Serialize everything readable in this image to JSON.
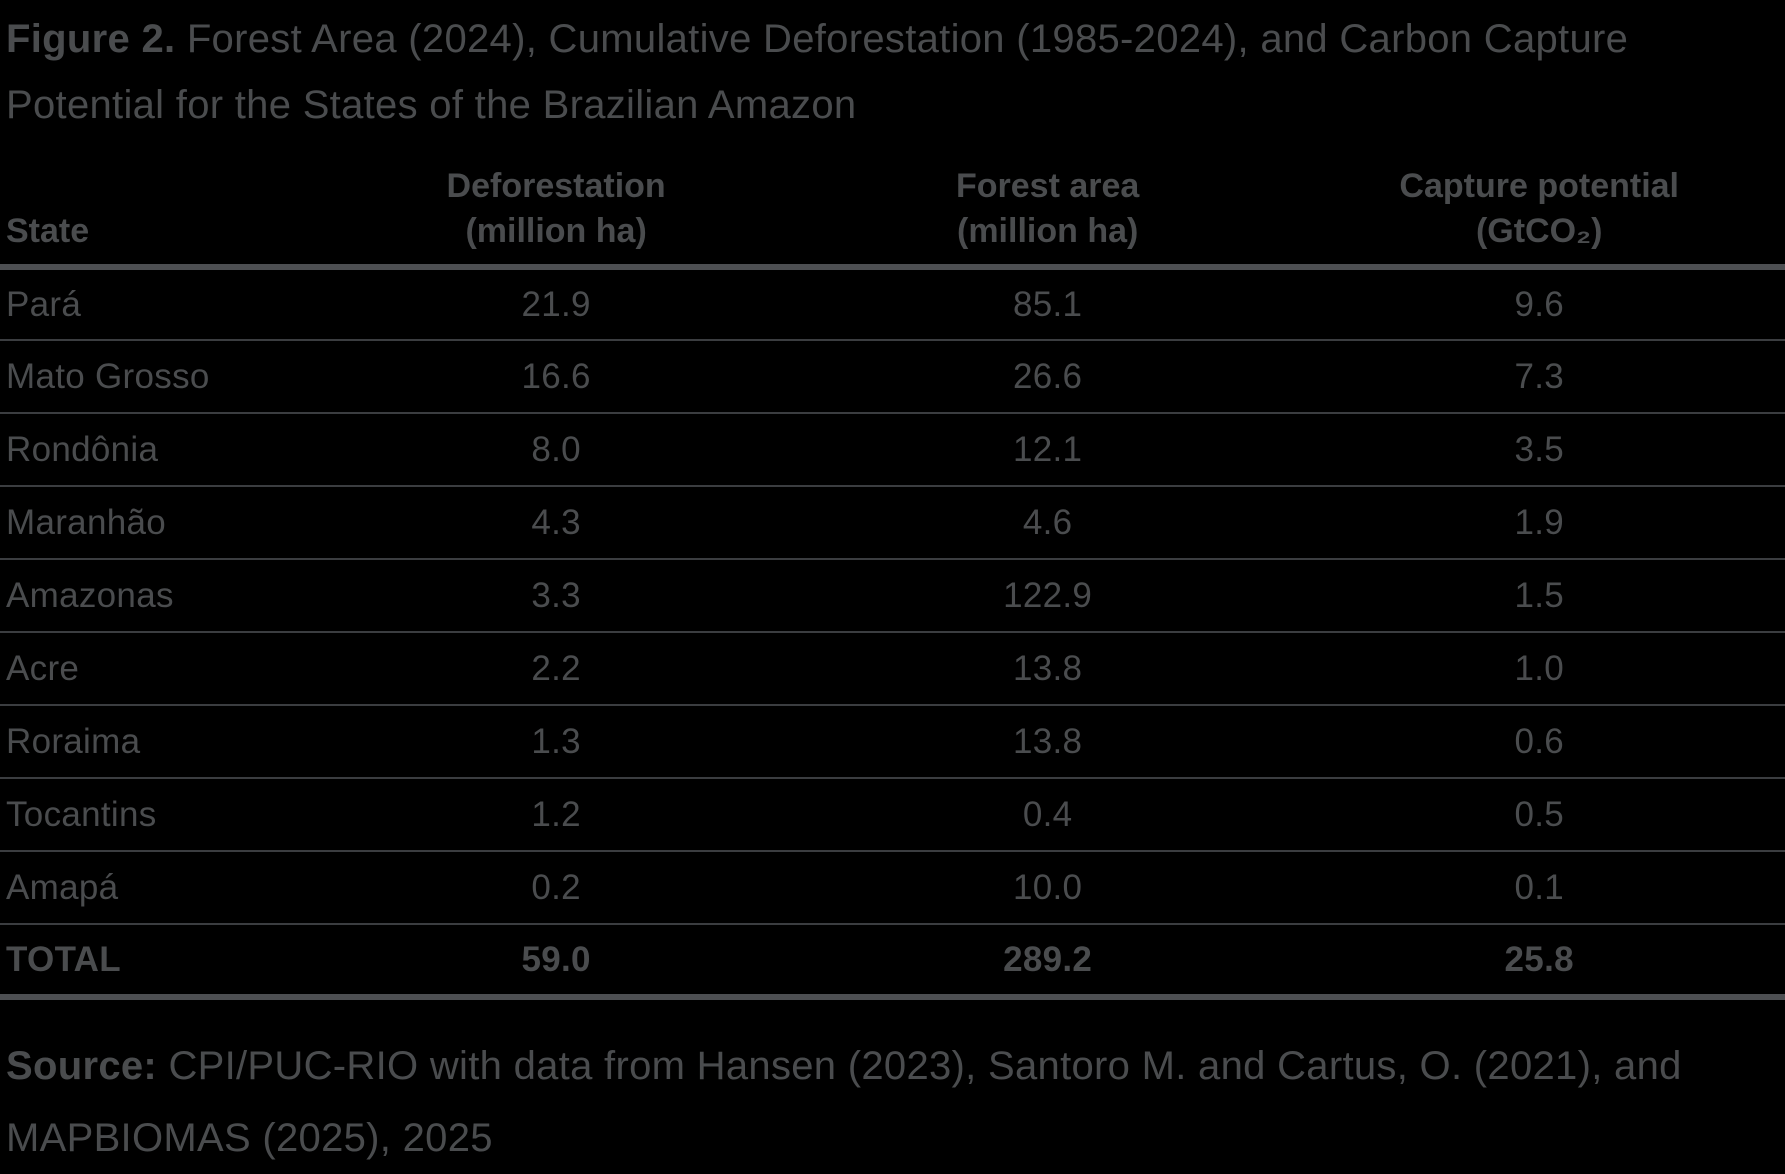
{
  "figure": {
    "label": "Figure 2.",
    "title": " Forest Area (2024), Cumulative Deforestation (1985-2024), and Carbon Capture Potential for the States of the Brazilian Amazon"
  },
  "table": {
    "columns": [
      {
        "label": "State",
        "sub": ""
      },
      {
        "label": "Deforestation",
        "sub": "(million ha)"
      },
      {
        "label": "Forest area",
        "sub": "(million ha)"
      },
      {
        "label": "Capture potential",
        "sub": "(GtCO₂)"
      }
    ],
    "rows": [
      [
        "Pará",
        "21.9",
        "85.1",
        "9.6"
      ],
      [
        "Mato Grosso",
        "16.6",
        "26.6",
        "7.3"
      ],
      [
        "Rondônia",
        "8.0",
        "12.1",
        "3.5"
      ],
      [
        "Maranhão",
        "4.3",
        "4.6",
        "1.9"
      ],
      [
        "Amazonas",
        "3.3",
        "122.9",
        "1.5"
      ],
      [
        "Acre",
        "2.2",
        "13.8",
        "1.0"
      ],
      [
        "Roraima",
        "1.3",
        "13.8",
        "0.6"
      ],
      [
        "Tocantins",
        "1.2",
        "0.4",
        "0.5"
      ],
      [
        "Amapá",
        "0.2",
        "10.0",
        "0.1"
      ]
    ],
    "total": [
      "TOTAL",
      "59.0",
      "289.2",
      "25.8"
    ]
  },
  "source": {
    "label": "Source:",
    "text": " CPI/PUC-RIO with data from Hansen (2023), Santoro M. and Cartus, O. (2021), and MAPBIOMAS (2025), 2025"
  },
  "colors": {
    "background": "#000000",
    "text": "#4A4C4E",
    "rule_thin": "#3B3D40",
    "rule_thick": "#4D4F52"
  },
  "chart_data": {
    "type": "table",
    "title": "Figure 2. Forest Area (2024), Cumulative Deforestation (1985-2024), and Carbon Capture Potential for the States of the Brazilian Amazon",
    "columns": [
      "State",
      "Deforestation (million ha)",
      "Forest area (million ha)",
      "Capture potential (GtCO₂)"
    ],
    "states": [
      "Pará",
      "Mato Grosso",
      "Rondônia",
      "Maranhão",
      "Amazonas",
      "Acre",
      "Roraima",
      "Tocantins",
      "Amapá"
    ],
    "series": [
      {
        "name": "Deforestation (million ha)",
        "values": [
          21.9,
          16.6,
          8.0,
          4.3,
          3.3,
          2.2,
          1.3,
          1.2,
          0.2
        ],
        "total": 59.0
      },
      {
        "name": "Forest area (million ha)",
        "values": [
          85.1,
          26.6,
          12.1,
          4.6,
          122.9,
          13.8,
          13.8,
          0.4,
          10.0
        ],
        "total": 289.2
      },
      {
        "name": "Capture potential (GtCO₂)",
        "values": [
          9.6,
          7.3,
          3.5,
          1.9,
          1.5,
          1.0,
          0.6,
          0.5,
          0.1
        ],
        "total": 25.8
      }
    ]
  }
}
